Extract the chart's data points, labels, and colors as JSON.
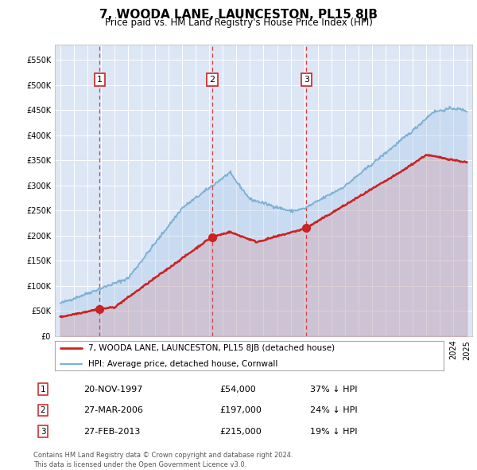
{
  "title": "7, WOODA LANE, LAUNCESTON, PL15 8JB",
  "subtitle": "Price paid vs. HM Land Registry's House Price Index (HPI)",
  "title_fontsize": 11,
  "subtitle_fontsize": 8.5,
  "plot_bg_color": "#dce6f5",
  "hpi_color": "#7ab0d4",
  "hpi_fill_color": "#a8c8e8",
  "price_color": "#cc2222",
  "price_fill_color": "#dd6666",
  "ylim": [
    0,
    580000
  ],
  "yticks": [
    0,
    50000,
    100000,
    150000,
    200000,
    250000,
    300000,
    350000,
    400000,
    450000,
    500000,
    550000
  ],
  "xlim_left": 1994.6,
  "xlim_right": 2025.4,
  "sales": [
    {
      "date_year": 1997.9,
      "price": 54000,
      "label": "1"
    },
    {
      "date_year": 2006.22,
      "price": 197000,
      "label": "2"
    },
    {
      "date_year": 2013.15,
      "price": 215000,
      "label": "3"
    }
  ],
  "legend_entries": [
    "7, WOODA LANE, LAUNCESTON, PL15 8JB (detached house)",
    "HPI: Average price, detached house, Cornwall"
  ],
  "table_rows": [
    {
      "num": "1",
      "date": "20-NOV-1997",
      "price": "£54,000",
      "change": "37% ↓ HPI"
    },
    {
      "num": "2",
      "date": "27-MAR-2006",
      "price": "£197,000",
      "change": "24% ↓ HPI"
    },
    {
      "num": "3",
      "date": "27-FEB-2013",
      "price": "£215,000",
      "change": "19% ↓ HPI"
    }
  ],
  "footnote": "Contains HM Land Registry data © Crown copyright and database right 2024.\nThis data is licensed under the Open Government Licence v3.0."
}
